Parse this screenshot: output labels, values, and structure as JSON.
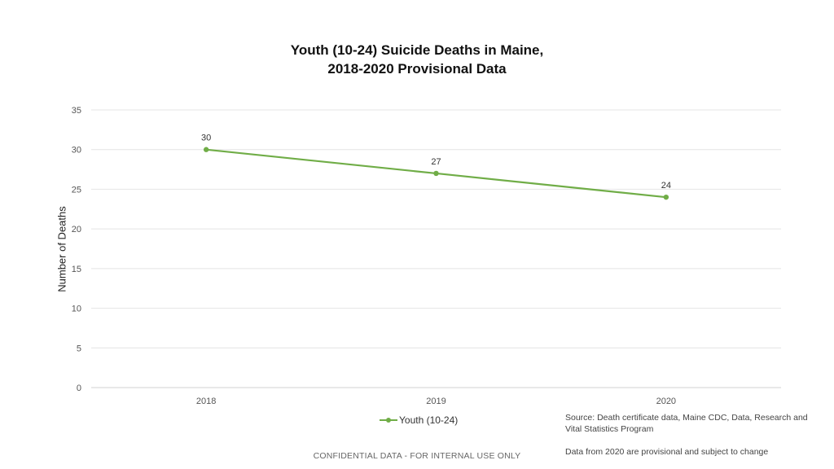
{
  "chart_data": {
    "type": "line",
    "title_lines": [
      "Youth (10-24) Suicide Deaths in Maine,",
      "2018-2020 Provisional Data"
    ],
    "xlabel": "",
    "ylabel": "Number of Deaths",
    "categories": [
      "2018",
      "2019",
      "2020"
    ],
    "series": [
      {
        "name": "Youth (10-24)",
        "values": [
          30,
          27,
          24
        ],
        "color": "#70ad47"
      }
    ],
    "ylim": [
      0,
      35
    ],
    "yticks": [
      0,
      5,
      10,
      15,
      20,
      25,
      30,
      35
    ],
    "grid": true,
    "legend_position": "bottom",
    "data_labels": true
  },
  "source": "Source: Death certificate data, Maine CDC, Data, Research and Vital Statistics Program",
  "note": "Data from 2020 are provisional and subject to change",
  "footer": "CONFIDENTIAL DATA - FOR INTERNAL USE ONLY"
}
